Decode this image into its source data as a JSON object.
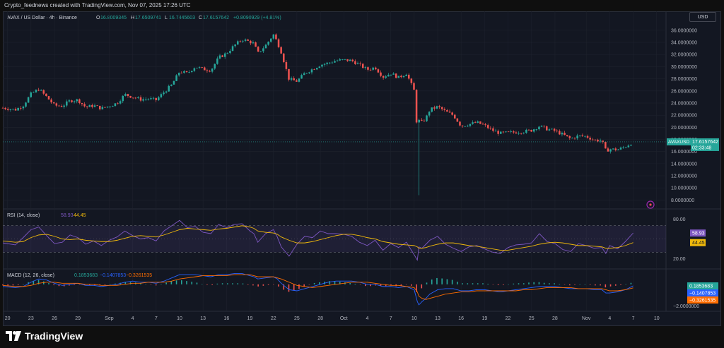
{
  "credit": "Crypto_feednews created with TradingView.com, Nov 07, 2025 17:26 UTC",
  "currency_button": "USD",
  "legend": {
    "symbol": "AVAX / US Dollar · 4h · Binance",
    "o_label": "O",
    "o_value": "16.8009345",
    "h_label": "H",
    "h_value": "17.6509741",
    "l_label": "L",
    "l_value": "16.7445603",
    "c_label": "C",
    "c_value": "17.6157642",
    "change": "+0.8090929 (+4.81%)"
  },
  "price_tag": {
    "symbol": "AVAXUSD",
    "price": "17.6157642",
    "countdown": "02:33:48"
  },
  "rsi": {
    "label": "RSI (14, close)",
    "value": "58.93",
    "ma_value": "44.45",
    "levels": [
      "80.00",
      "20.00"
    ]
  },
  "macd": {
    "label": "MACD (12, 26, close)",
    "hist_value": "0.1853683",
    "macd_value": "−0.1407853",
    "signal_value": "−0.3261535",
    "level": "−2.0000000"
  },
  "colors": {
    "up": "#26a69a",
    "down": "#ef5350",
    "rsi": "#7e57c2",
    "rsi_ma": "#f0b90b",
    "macd": "#2962ff",
    "signal": "#ff6d00",
    "bg": "#131722"
  },
  "footer_logo": "TradingView",
  "chart_data": [
    {
      "type": "candlestick",
      "title": "AVAX / US Dollar · 4h · Binance",
      "y_ticks": [
        "36.0000000",
        "34.0000000",
        "32.0000000",
        "30.0000000",
        "28.0000000",
        "26.0000000",
        "24.0000000",
        "22.0000000",
        "20.0000000",
        "18.0000000",
        "16.0000000",
        "14.0000000",
        "12.0000000",
        "10.0000000",
        "8.0000000"
      ],
      "ylim": [
        7,
        37.5
      ],
      "x_ticks": [
        "20",
        "23",
        "26",
        "29",
        "Sep",
        "4",
        "7",
        "10",
        "13",
        "16",
        "19",
        "22",
        "25",
        "28",
        "Oct",
        "4",
        "7",
        "10",
        "13",
        "16",
        "19",
        "22",
        "25",
        "28",
        "Nov",
        "4",
        "7",
        "10"
      ],
      "x_tick_days": [
        -12,
        -9,
        -6,
        -3,
        1,
        4,
        7,
        10,
        13,
        16,
        19,
        22,
        25,
        28,
        31,
        34,
        37,
        40,
        43,
        46,
        49,
        52,
        55,
        58,
        62,
        65,
        68,
        71
      ],
      "x_range_days": [
        -12.6,
        72.2
      ],
      "data_range_days": [
        -12.6,
        68.7
      ],
      "series": [
        {
          "name": "AVAXUSD",
          "day": [
            -12.6,
            -11,
            -10,
            -9,
            -8,
            -7,
            -6,
            -5,
            -4,
            -3,
            -2,
            -1,
            0,
            1,
            2,
            3,
            4,
            5,
            6,
            7,
            8,
            9,
            10,
            11,
            12,
            13,
            14,
            15,
            16,
            17,
            18,
            19,
            19.5,
            20,
            21,
            22,
            22.5,
            23,
            24,
            25,
            26,
            27,
            28,
            29,
            30,
            31,
            32,
            33,
            34,
            35,
            36,
            37,
            38,
            39,
            40,
            40.4,
            40.6,
            41,
            41.5,
            42,
            43,
            44,
            45,
            46,
            47,
            48,
            49,
            50,
            51,
            52,
            53,
            54,
            55,
            56,
            57,
            58,
            59,
            60,
            61,
            62,
            63,
            64,
            64.5,
            65,
            66,
            67,
            68,
            68.7
          ],
          "close": [
            23.2,
            22.9,
            23.6,
            25.5,
            26.3,
            25.0,
            23.6,
            23.5,
            24.4,
            24.5,
            23.3,
            23.6,
            23.1,
            23.5,
            24.0,
            25.4,
            25.0,
            24.6,
            24.7,
            24.5,
            25.8,
            27.0,
            29.2,
            28.9,
            30.0,
            29.6,
            29.4,
            31.5,
            32.2,
            33.5,
            34.5,
            34.1,
            33.8,
            32.2,
            33.5,
            35.3,
            34.0,
            32.4,
            27.9,
            27.6,
            28.9,
            29.6,
            30.3,
            30.6,
            31.0,
            31.1,
            31.0,
            30.3,
            29.5,
            29.9,
            28.3,
            28.9,
            28.2,
            28.9,
            26.0,
            19.2,
            21.1,
            20.8,
            21.5,
            22.9,
            23.4,
            22.6,
            22.0,
            20.2,
            20.5,
            20.8,
            20.3,
            19.5,
            19.0,
            19.1,
            19.2,
            19.3,
            19.5,
            20.2,
            19.7,
            19.4,
            18.8,
            18.1,
            18.6,
            18.5,
            17.9,
            17.8,
            16.1,
            16.4,
            16.3,
            16.8,
            17.6
          ]
        }
      ]
    },
    {
      "type": "line",
      "title": "RSI (14, close)",
      "ylim": [
        10,
        90
      ],
      "y_ticks": [
        "80.00",
        "20.00"
      ],
      "series": [
        {
          "name": "RSI",
          "values": [
            44,
            41,
            52,
            64,
            68,
            55,
            43,
            45,
            56,
            52,
            42,
            47,
            40,
            48,
            53,
            62,
            55,
            50,
            52,
            47,
            62,
            70,
            78,
            67,
            69,
            60,
            58,
            72,
            67,
            72,
            73,
            62,
            58,
            45,
            58,
            64,
            53,
            38,
            24,
            42,
            54,
            52,
            62,
            58,
            58,
            57,
            54,
            45,
            40,
            48,
            33,
            43,
            37,
            45,
            26,
            18,
            38,
            36,
            42,
            48,
            54,
            42,
            36,
            31,
            38,
            40,
            35,
            30,
            28,
            37,
            41,
            42,
            44,
            58,
            46,
            43,
            34,
            31,
            43,
            40,
            36,
            37,
            28,
            40,
            35,
            46,
            58.93
          ]
        },
        {
          "name": "RSI-based MA",
          "values": [
            47,
            45,
            46,
            52,
            56,
            57,
            54,
            50,
            49,
            50,
            48,
            47,
            46,
            46,
            48,
            51,
            54,
            55,
            54,
            53,
            56,
            60,
            64,
            66,
            65,
            64,
            63,
            65,
            66,
            68,
            70,
            68,
            66,
            62,
            60,
            59,
            57,
            53,
            48,
            44,
            44,
            46,
            49,
            52,
            55,
            57,
            57,
            55,
            52,
            50,
            46,
            44,
            42,
            41,
            40,
            38,
            36,
            36,
            37,
            39,
            42,
            44,
            44,
            42,
            40,
            39,
            37,
            35,
            33,
            33,
            35,
            37,
            39,
            42,
            44,
            45,
            44,
            42,
            40,
            40,
            39,
            38,
            36,
            36,
            37,
            40,
            44.45
          ]
        }
      ]
    },
    {
      "type": "line",
      "title": "MACD (12, 26, close)",
      "ylim": [
        -2.3,
        1.1
      ],
      "y_ticks": [
        "−2.0000000"
      ],
      "series": [
        {
          "name": "MACD",
          "values": [
            -0.2,
            -0.3,
            -0.2,
            0.2,
            0.5,
            0.4,
            0.1,
            -0.1,
            0.0,
            0.1,
            -0.1,
            -0.1,
            -0.2,
            -0.1,
            0.0,
            0.2,
            0.3,
            0.2,
            0.2,
            0.1,
            0.3,
            0.6,
            0.9,
            0.9,
            0.9,
            0.8,
            0.7,
            0.9,
            0.9,
            1.0,
            1.0,
            0.8,
            0.7,
            0.5,
            0.6,
            0.7,
            0.5,
            0.1,
            -0.5,
            -0.6,
            -0.4,
            -0.2,
            0.0,
            0.2,
            0.3,
            0.3,
            0.3,
            0.2,
            0.0,
            0.0,
            -0.2,
            -0.2,
            -0.3,
            -0.2,
            -0.5,
            -1.6,
            -1.9,
            -1.6,
            -1.3,
            -0.9,
            -0.5,
            -0.4,
            -0.4,
            -0.6,
            -0.6,
            -0.5,
            -0.5,
            -0.6,
            -0.7,
            -0.6,
            -0.5,
            -0.4,
            -0.3,
            -0.2,
            -0.2,
            -0.2,
            -0.3,
            -0.4,
            -0.4,
            -0.4,
            -0.5,
            -0.5,
            -0.8,
            -0.8,
            -0.7,
            -0.5,
            -0.14
          ]
        },
        {
          "name": "Signal",
          "values": [
            -0.1,
            -0.2,
            -0.2,
            -0.1,
            0.1,
            0.2,
            0.2,
            0.1,
            0.1,
            0.1,
            0.0,
            0.0,
            -0.1,
            -0.1,
            -0.1,
            0.0,
            0.1,
            0.1,
            0.2,
            0.2,
            0.2,
            0.3,
            0.5,
            0.6,
            0.7,
            0.8,
            0.8,
            0.8,
            0.8,
            0.9,
            0.9,
            0.9,
            0.8,
            0.7,
            0.7,
            0.7,
            0.6,
            0.5,
            0.2,
            -0.1,
            -0.2,
            -0.3,
            -0.2,
            -0.1,
            0.0,
            0.1,
            0.2,
            0.2,
            0.2,
            0.1,
            0.0,
            -0.1,
            -0.1,
            -0.2,
            -0.3,
            -0.7,
            -1.1,
            -1.3,
            -1.4,
            -1.3,
            -1.1,
            -0.9,
            -0.8,
            -0.7,
            -0.7,
            -0.6,
            -0.6,
            -0.6,
            -0.6,
            -0.6,
            -0.6,
            -0.5,
            -0.5,
            -0.4,
            -0.3,
            -0.3,
            -0.3,
            -0.3,
            -0.4,
            -0.4,
            -0.4,
            -0.4,
            -0.5,
            -0.6,
            -0.6,
            -0.5,
            -0.33
          ]
        }
      ]
    }
  ]
}
